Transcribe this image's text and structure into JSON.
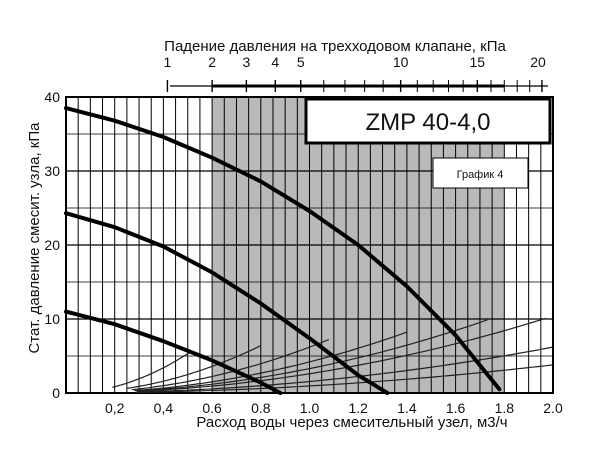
{
  "chart_data": {
    "type": "line",
    "model_label": "ZMP 40-4,0",
    "graph_label": "График 4",
    "xlabel": "Расход воды через смесительный узел, м3/ч",
    "ylabel": "Стат. давление смесит. узла, кПа",
    "top_axis_label": "Падение давления на трехходовом клапане, кПа",
    "xlim": [
      0,
      2.0
    ],
    "ylim": [
      0,
      40
    ],
    "x_ticks": [
      "0,2",
      "0,4",
      "0.6",
      "0.8",
      "1.0",
      "1.2",
      "1.4",
      "1.6",
      "1.8",
      "2.0"
    ],
    "x_tick_values": [
      0.2,
      0.4,
      0.6,
      0.8,
      1.0,
      1.2,
      1.4,
      1.6,
      1.8,
      2.0
    ],
    "y_ticks": [
      "0",
      "10",
      "20",
      "30",
      "40"
    ],
    "y_tick_values": [
      0,
      10,
      20,
      30,
      40
    ],
    "top_ticks": [
      "1",
      "2",
      "3",
      "4",
      "5",
      "10",
      "15",
      "20"
    ],
    "top_tick_values": [
      1,
      2,
      3,
      4,
      5,
      10,
      15,
      20
    ],
    "shaded_range_x": [
      0.6,
      1.8
    ],
    "grid": true,
    "pump_curves": [
      {
        "x": [
          0.0,
          0.2,
          0.4,
          0.6,
          0.8,
          1.0,
          1.2,
          1.4,
          1.6,
          1.78
        ],
        "y": [
          38.5,
          36.8,
          34.6,
          31.8,
          28.6,
          24.6,
          20.0,
          14.4,
          7.8,
          0.5
        ]
      },
      {
        "x": [
          0.0,
          0.2,
          0.4,
          0.6,
          0.8,
          1.0,
          1.2,
          1.32
        ],
        "y": [
          24.3,
          22.4,
          19.8,
          16.3,
          12.1,
          7.4,
          2.4,
          0.0
        ]
      },
      {
        "x": [
          0.0,
          0.2,
          0.4,
          0.6,
          0.8,
          0.88
        ],
        "y": [
          11.0,
          9.3,
          7.0,
          4.4,
          1.4,
          0.0
        ]
      }
    ],
    "valve_curves": [
      {
        "k": 21.3,
        "x_start": 0.19,
        "x_end": 0.51
      },
      {
        "k": 10.0,
        "x_start": 0.25,
        "x_end": 0.8
      },
      {
        "k": 6.2,
        "x_start": 0.27,
        "x_end": 1.08
      },
      {
        "k": 4.2,
        "x_start": 0.28,
        "x_end": 1.4
      },
      {
        "k": 3.3,
        "x_start": 0.29,
        "x_end": 1.73
      },
      {
        "k": 2.6,
        "x_start": 0.29,
        "x_end": 1.97
      },
      {
        "k": 1.55,
        "x_start": 0.29,
        "x_end": 2.0
      },
      {
        "k": 0.95,
        "x_start": 0.29,
        "x_end": 2.0
      }
    ]
  }
}
